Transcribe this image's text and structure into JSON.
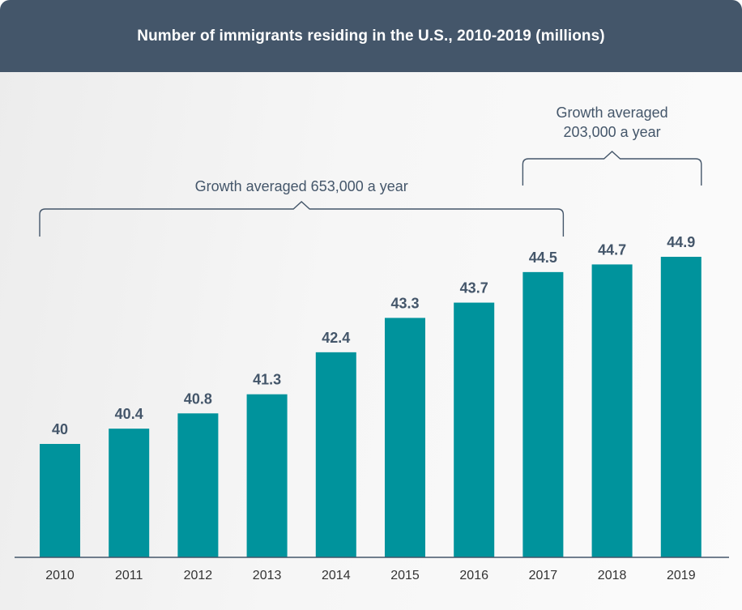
{
  "chart_data": {
    "type": "bar",
    "title": "Number of immigrants residing in the U.S., 2010-2019 (millions)",
    "categories": [
      "2010",
      "2011",
      "2012",
      "2013",
      "2014",
      "2015",
      "2016",
      "2017",
      "2018",
      "2019"
    ],
    "values": [
      40,
      40.4,
      40.8,
      41.3,
      42.4,
      43.3,
      43.7,
      44.5,
      44.7,
      44.9
    ],
    "value_labels": [
      "40",
      "40.4",
      "40.8",
      "41.3",
      "42.4",
      "43.3",
      "43.7",
      "44.5",
      "44.7",
      "44.9"
    ],
    "xlabel": "",
    "ylabel": "",
    "ylim": [
      35,
      46
    ],
    "grid": false,
    "legend": "none",
    "bar_color": "#00939c",
    "annotations": [
      {
        "lines": [
          "Growth averaged 653,000 a year"
        ],
        "from": "2010",
        "to": "2017"
      },
      {
        "lines": [
          "Growth averaged",
          "203,000 a year"
        ],
        "from": "2017",
        "to": "2019"
      }
    ]
  },
  "colors": {
    "header_bg": "#44566a",
    "title_text": "#ffffff",
    "value_text": "#44566a",
    "bar": "#00939c"
  }
}
